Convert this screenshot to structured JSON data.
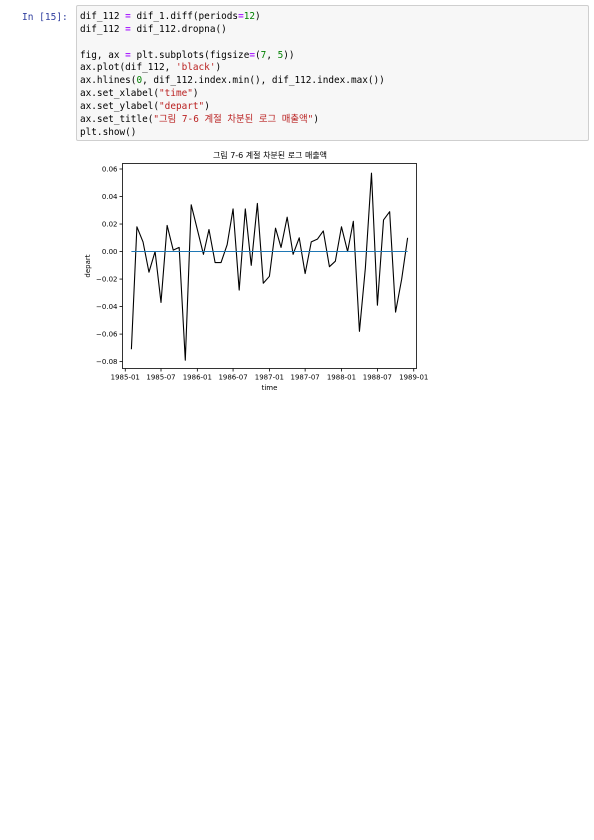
{
  "cell": {
    "prompt": "In [15]:",
    "code_lines": [
      [
        {
          "t": "dif_112 "
        },
        {
          "t": "=",
          "c": "op"
        },
        {
          "t": " dif_1.diff(periods"
        },
        {
          "t": "=",
          "c": "op"
        },
        {
          "t": "12",
          "c": "num"
        },
        {
          "t": ")"
        }
      ],
      [
        {
          "t": "dif_112 "
        },
        {
          "t": "=",
          "c": "op"
        },
        {
          "t": " dif_112.dropna()"
        }
      ],
      [],
      [
        {
          "t": "fig, ax "
        },
        {
          "t": "=",
          "c": "op"
        },
        {
          "t": " plt.subplots(figsize"
        },
        {
          "t": "=",
          "c": "op"
        },
        {
          "t": "("
        },
        {
          "t": "7",
          "c": "num"
        },
        {
          "t": ", "
        },
        {
          "t": "5",
          "c": "num"
        },
        {
          "t": "))"
        }
      ],
      [
        {
          "t": "ax.plot(dif_112, "
        },
        {
          "t": "'black'",
          "c": "str"
        },
        {
          "t": ")"
        }
      ],
      [
        {
          "t": "ax.hlines("
        },
        {
          "t": "0",
          "c": "num"
        },
        {
          "t": ", dif_112.index.min(), dif_112.index.max())"
        }
      ],
      [
        {
          "t": "ax.set_xlabel("
        },
        {
          "t": "\"time\"",
          "c": "str"
        },
        {
          "t": ")"
        }
      ],
      [
        {
          "t": "ax.set_ylabel("
        },
        {
          "t": "\"depart\"",
          "c": "str"
        },
        {
          "t": ")"
        }
      ],
      [
        {
          "t": "ax.set_title("
        },
        {
          "t": "\"그림 7-6 계절 차분된 로그 매출액\"",
          "c": "str"
        },
        {
          "t": ")"
        }
      ],
      [
        {
          "t": "plt.show()"
        }
      ]
    ]
  },
  "chart_data": {
    "type": "line",
    "title": "그림 7-6 계절 차분된 로그 매출액",
    "xlabel": "time",
    "ylabel": "depart",
    "x_start": "1985-02",
    "x_step_months": 1,
    "xlim": [
      "1984-12-18",
      "1989-01-15"
    ],
    "ylim": [
      -0.085,
      0.064
    ],
    "xticks": [
      "1985-01",
      "1985-07",
      "1986-01",
      "1986-07",
      "1987-01",
      "1987-07",
      "1988-01",
      "1988-07",
      "1989-01"
    ],
    "yticks": [
      0.06,
      0.04,
      0.02,
      0.0,
      -0.02,
      -0.04,
      -0.06,
      -0.08
    ],
    "ytick_labels": [
      "0.06",
      "0.04",
      "0.02",
      "0.00",
      "−0.02",
      "−0.04",
      "−0.06",
      "−0.08"
    ],
    "series": [
      {
        "color": "#000000",
        "values": [
          -0.071,
          0.018,
          0.007,
          -0.015,
          0.0,
          -0.037,
          0.019,
          0.001,
          0.003,
          -0.079,
          0.034,
          0.016,
          -0.002,
          0.016,
          -0.008,
          -0.008,
          0.005,
          0.031,
          -0.028,
          0.031,
          -0.01,
          0.035,
          -0.023,
          -0.018,
          0.017,
          0.003,
          0.025,
          -0.002,
          0.01,
          -0.016,
          0.007,
          0.009,
          0.015,
          -0.011,
          -0.007,
          0.018,
          0.0,
          0.022,
          -0.058,
          -0.012,
          0.057,
          -0.039,
          0.023,
          0.029,
          -0.044,
          -0.02,
          0.01
        ]
      }
    ],
    "hline": {
      "y": 0,
      "color": "#1f77b4"
    }
  }
}
